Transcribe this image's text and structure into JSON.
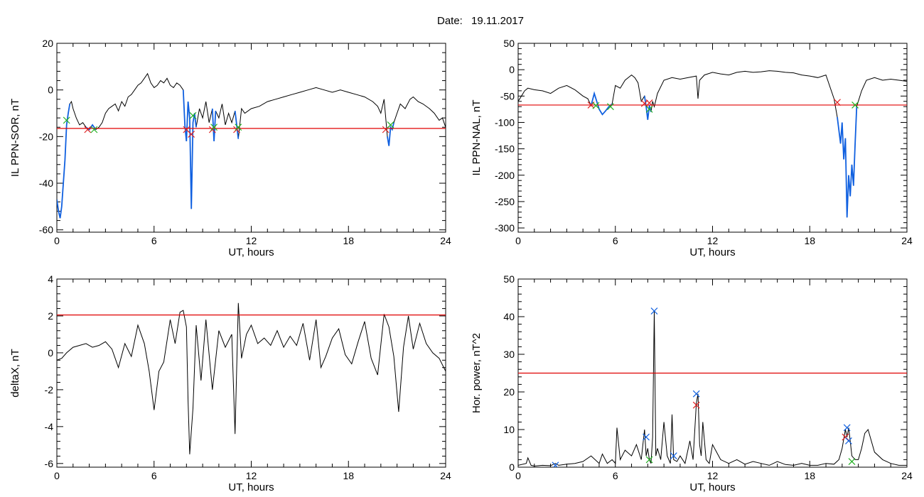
{
  "header": {
    "date_label": "Date:",
    "date_value": "19.11.2017"
  },
  "colors": {
    "trace": "#000000",
    "threshold": "#e00000",
    "highlight": "#1060e0",
    "marker_red": "#e02020",
    "marker_green": "#20b020",
    "marker_blue": "#1060e0"
  },
  "chart_data": [
    {
      "id": "sor",
      "type": "line",
      "title": "",
      "xlabel": "UT, hours",
      "ylabel": "IL PPN-SOR, nT",
      "xlim": [
        0,
        24
      ],
      "ylim": [
        -61,
        20
      ],
      "xticks": [
        0,
        6,
        12,
        18,
        24
      ],
      "yticks": [
        20,
        0,
        -20,
        -40,
        -60
      ],
      "threshold": -16.5,
      "series": [
        {
          "x": [
            0,
            0.1,
            0.2,
            0.3,
            0.4,
            0.5,
            0.6,
            0.7,
            0.8,
            0.9,
            1.0,
            1.2,
            1.4,
            1.6,
            1.8,
            2.0,
            2.2,
            2.4,
            2.6,
            2.8,
            3.0,
            3.2,
            3.4,
            3.6,
            3.8,
            4.0,
            4.2,
            4.4,
            4.6,
            4.8,
            5.0,
            5.2,
            5.4,
            5.6,
            5.8,
            6.0,
            6.2,
            6.4,
            6.6,
            6.8,
            7.0,
            7.2,
            7.4,
            7.6,
            7.8,
            7.9,
            8.0,
            8.1,
            8.2,
            8.3,
            8.4,
            8.5,
            8.6,
            8.8,
            9.0,
            9.2,
            9.4,
            9.6,
            9.7,
            9.8,
            10.0,
            10.2,
            10.4,
            10.6,
            10.8,
            11.0,
            11.2,
            11.4,
            11.6,
            12.0,
            12.5,
            13.0,
            13.5,
            14.0,
            14.5,
            15.0,
            15.5,
            16.0,
            16.5,
            17.0,
            17.5,
            18.0,
            18.5,
            19.0,
            19.5,
            19.8,
            20.0,
            20.2,
            20.4,
            20.5,
            20.6,
            20.7,
            20.8,
            21.0,
            21.2,
            21.5,
            21.8,
            22.0,
            22.3,
            22.6,
            23.0,
            23.3,
            23.6,
            23.8,
            24.0
          ],
          "y": [
            -47,
            -52,
            -55,
            -50,
            -40,
            -30,
            -15,
            -10,
            -6,
            -5,
            -8,
            -12,
            -15,
            -14,
            -16,
            -17,
            -15,
            -17,
            -16,
            -14,
            -10,
            -8,
            -7,
            -6,
            -9,
            -5,
            -7,
            -3,
            -2,
            0,
            2,
            3,
            5,
            7,
            3,
            1,
            2,
            4,
            3,
            5,
            2,
            1,
            3,
            2,
            0,
            -15,
            -22,
            -5,
            -12,
            -51,
            -14,
            -10,
            -16,
            -8,
            -12,
            -5,
            -14,
            -8,
            -22,
            -9,
            -12,
            -6,
            -15,
            -10,
            -14,
            -9,
            -21,
            -8,
            -10,
            -8,
            -7,
            -5,
            -4,
            -3,
            -2,
            -1,
            0,
            1,
            0,
            -1,
            0,
            -1,
            -2,
            -3,
            -5,
            -7,
            -10,
            -4,
            -20,
            -24,
            -16,
            -17,
            -14,
            -10,
            -6,
            -8,
            -4,
            -3,
            -5,
            -6,
            -8,
            -10,
            -13,
            -12,
            -16
          ]
        }
      ],
      "highlights": [
        {
          "x0": 0,
          "x1": 0.8
        },
        {
          "x0": 1.8,
          "x1": 2.4
        },
        {
          "x0": 7.8,
          "x1": 8.6
        },
        {
          "x0": 9.5,
          "x1": 9.8
        },
        {
          "x0": 11.0,
          "x1": 11.3
        },
        {
          "x0": 20.3,
          "x1": 20.8
        }
      ],
      "markers": [
        {
          "x": 0.6,
          "y": -13,
          "color": "marker_green"
        },
        {
          "x": 1.9,
          "y": -17,
          "color": "marker_red"
        },
        {
          "x": 2.3,
          "y": -17,
          "color": "marker_green"
        },
        {
          "x": 8.0,
          "y": -17,
          "color": "marker_red"
        },
        {
          "x": 8.3,
          "y": -19,
          "color": "marker_red"
        },
        {
          "x": 8.4,
          "y": -11,
          "color": "marker_green"
        },
        {
          "x": 9.6,
          "y": -17,
          "color": "marker_red"
        },
        {
          "x": 9.7,
          "y": -16,
          "color": "marker_green"
        },
        {
          "x": 11.1,
          "y": -17,
          "color": "marker_red"
        },
        {
          "x": 11.2,
          "y": -16,
          "color": "marker_green"
        },
        {
          "x": 20.3,
          "y": -17,
          "color": "marker_red"
        },
        {
          "x": 20.6,
          "y": -15,
          "color": "marker_green"
        }
      ]
    },
    {
      "id": "nal",
      "type": "line",
      "title": "",
      "xlabel": "UT, hours",
      "ylabel": "IL PPN-NAL, nT",
      "xlim": [
        0,
        24
      ],
      "ylim": [
        -308,
        50
      ],
      "xticks": [
        0,
        6,
        12,
        18,
        24
      ],
      "yticks": [
        50,
        0,
        -50,
        -100,
        -150,
        -200,
        -250,
        -300
      ],
      "threshold": -67,
      "series": [
        {
          "x": [
            0,
            0.2,
            0.4,
            0.6,
            1.0,
            1.5,
            2.0,
            2.5,
            3.0,
            3.5,
            4.0,
            4.3,
            4.5,
            4.7,
            5.0,
            5.2,
            5.4,
            5.6,
            5.8,
            6.0,
            6.3,
            6.6,
            7.0,
            7.2,
            7.4,
            7.6,
            7.8,
            7.9,
            8.0,
            8.1,
            8.2,
            8.3,
            8.4,
            8.6,
            9.0,
            9.5,
            10.0,
            10.5,
            11.0,
            11.1,
            11.2,
            11.5,
            12.0,
            12.5,
            13.0,
            13.5,
            14.0,
            14.5,
            15.0,
            15.5,
            16.0,
            16.5,
            17.0,
            17.5,
            18.0,
            18.5,
            19.0,
            19.5,
            19.7,
            19.9,
            20.0,
            20.1,
            20.2,
            20.3,
            20.4,
            20.5,
            20.6,
            20.7,
            20.8,
            20.9,
            21.0,
            21.2,
            21.5,
            22.0,
            22.5,
            23.0,
            23.5,
            24.0
          ],
          "y": [
            -60,
            -50,
            -40,
            -35,
            -38,
            -40,
            -45,
            -35,
            -30,
            -38,
            -50,
            -55,
            -68,
            -45,
            -75,
            -85,
            -78,
            -70,
            -65,
            -30,
            -35,
            -20,
            -10,
            -15,
            -25,
            -60,
            -50,
            -70,
            -95,
            -68,
            -80,
            -60,
            -70,
            -45,
            -20,
            -15,
            -18,
            -15,
            -12,
            -55,
            -20,
            -10,
            -5,
            -8,
            -10,
            -5,
            -3,
            -5,
            -4,
            -2,
            -3,
            -5,
            -6,
            -10,
            -12,
            -15,
            -10,
            -55,
            -90,
            -140,
            -100,
            -170,
            -130,
            -280,
            -200,
            -240,
            -180,
            -220,
            -140,
            -70,
            -60,
            -40,
            -20,
            -15,
            -20,
            -18,
            -20,
            -22
          ]
        }
      ],
      "highlights": [
        {
          "x0": 4.4,
          "x1": 5.8
        },
        {
          "x0": 7.7,
          "x1": 8.2
        },
        {
          "x0": 19.7,
          "x1": 20.9
        }
      ],
      "markers": [
        {
          "x": 4.5,
          "y": -67,
          "color": "marker_red"
        },
        {
          "x": 4.8,
          "y": -68,
          "color": "marker_green"
        },
        {
          "x": 5.7,
          "y": -70,
          "color": "marker_green"
        },
        {
          "x": 7.8,
          "y": -64,
          "color": "marker_red"
        },
        {
          "x": 8.1,
          "y": -63,
          "color": "marker_red"
        },
        {
          "x": 8.1,
          "y": -75,
          "color": "marker_green"
        },
        {
          "x": 19.7,
          "y": -62,
          "color": "marker_red"
        },
        {
          "x": 20.8,
          "y": -67,
          "color": "marker_green"
        }
      ]
    },
    {
      "id": "deltax",
      "type": "line",
      "title": "",
      "xlabel": "UT, hours",
      "ylabel": "deltaX, nT",
      "xlim": [
        0,
        24
      ],
      "ylim": [
        -6.2,
        4
      ],
      "xticks": [
        0,
        6,
        12,
        18,
        24
      ],
      "yticks": [
        4,
        2,
        0,
        -2,
        -4,
        -6
      ],
      "threshold": 2.05,
      "series": [
        {
          "x": [
            0,
            0.3,
            0.6,
            1.0,
            1.4,
            1.8,
            2.2,
            2.6,
            3.0,
            3.4,
            3.8,
            4.2,
            4.6,
            5.0,
            5.4,
            5.7,
            6.0,
            6.3,
            6.6,
            7.0,
            7.3,
            7.6,
            7.8,
            8.0,
            8.1,
            8.2,
            8.4,
            8.6,
            8.9,
            9.2,
            9.6,
            10.0,
            10.4,
            10.8,
            11.0,
            11.2,
            11.4,
            11.7,
            12.0,
            12.4,
            12.8,
            13.2,
            13.6,
            14.0,
            14.4,
            14.8,
            15.2,
            15.6,
            16.0,
            16.3,
            16.6,
            17.0,
            17.4,
            17.8,
            18.2,
            18.6,
            19.0,
            19.4,
            19.8,
            20.2,
            20.5,
            20.8,
            21.1,
            21.4,
            21.7,
            22.0,
            22.4,
            22.8,
            23.2,
            23.6,
            24.0
          ],
          "y": [
            -0.4,
            -0.3,
            0.0,
            0.3,
            0.4,
            0.5,
            0.3,
            0.4,
            0.6,
            0.2,
            -0.8,
            0.5,
            -0.2,
            1.5,
            0.5,
            -1.0,
            -3.1,
            -1.0,
            -0.5,
            1.8,
            0.5,
            2.2,
            2.3,
            1.4,
            -2.6,
            -5.5,
            -3.0,
            1.5,
            -1.5,
            1.8,
            -2.0,
            1.2,
            0.3,
            1.0,
            -4.4,
            2.7,
            -0.3,
            1.0,
            1.5,
            0.5,
            0.8,
            0.4,
            1.2,
            0.3,
            0.9,
            0.4,
            1.6,
            -0.4,
            1.8,
            -0.8,
            -0.2,
            0.8,
            1.3,
            -0.1,
            -0.6,
            0.6,
            1.7,
            -0.3,
            -1.2,
            2.1,
            1.4,
            -0.2,
            -3.2,
            0.3,
            2.0,
            0.2,
            1.6,
            0.5,
            0.0,
            -0.3,
            -1.0
          ]
        }
      ],
      "highlights": [],
      "markers": []
    },
    {
      "id": "power",
      "type": "line",
      "title": "",
      "xlabel": "UT, hours",
      "ylabel": "Hor. power, nT^2",
      "xlim": [
        0,
        24
      ],
      "ylim": [
        0,
        50
      ],
      "xticks": [
        0,
        6,
        12,
        18,
        24
      ],
      "yticks": [
        0,
        10,
        20,
        30,
        40,
        50
      ],
      "threshold": 25,
      "series": [
        {
          "x": [
            0,
            0.5,
            0.6,
            0.8,
            1.0,
            1.5,
            2.0,
            2.3,
            2.5,
            3.0,
            3.5,
            4.0,
            4.5,
            5.0,
            5.2,
            5.5,
            5.8,
            6.0,
            6.1,
            6.3,
            6.6,
            7.0,
            7.3,
            7.6,
            7.8,
            7.9,
            8.0,
            8.1,
            8.2,
            8.3,
            8.4,
            8.5,
            8.6,
            8.8,
            9.0,
            9.2,
            9.4,
            9.5,
            9.6,
            9.8,
            10.0,
            10.3,
            10.6,
            10.8,
            11.0,
            11.1,
            11.2,
            11.3,
            11.4,
            11.6,
            11.8,
            12.0,
            12.5,
            13.0,
            13.5,
            14.0,
            14.5,
            15.0,
            15.5,
            16.0,
            16.5,
            17.0,
            17.5,
            18.0,
            18.5,
            19.0,
            19.5,
            19.8,
            20.0,
            20.2,
            20.3,
            20.4,
            20.5,
            20.6,
            20.8,
            21.0,
            21.2,
            21.4,
            21.6,
            22.0,
            22.5,
            23.0,
            23.5,
            24.0
          ],
          "y": [
            0.5,
            1.0,
            2.5,
            0.5,
            0.3,
            0.5,
            0.4,
            1.0,
            0.5,
            0.8,
            1.0,
            1.5,
            3.0,
            1.0,
            3.5,
            1.0,
            2.0,
            1.0,
            10.5,
            2.0,
            4.5,
            3.0,
            6.0,
            2.0,
            10.0,
            3.0,
            5.0,
            2.0,
            1.0,
            8.0,
            41.5,
            3.0,
            5.0,
            2.0,
            12.0,
            3.0,
            1.0,
            14.0,
            2.0,
            1.5,
            3.0,
            1.0,
            7.0,
            2.0,
            17.0,
            19.5,
            6.0,
            3.0,
            12.0,
            2.0,
            1.0,
            6.0,
            2.0,
            1.0,
            2.0,
            0.8,
            1.5,
            1.0,
            0.5,
            1.5,
            0.7,
            0.5,
            1.0,
            0.5,
            0.5,
            1.0,
            0.8,
            2.0,
            5.0,
            10.0,
            8.0,
            10.5,
            7.0,
            3.0,
            2.0,
            2.0,
            5.0,
            9.0,
            10.0,
            4.0,
            2.0,
            1.0,
            0.5,
            0.5
          ]
        }
      ],
      "highlights": [],
      "markers": [
        {
          "x": 2.3,
          "y": 0.5,
          "color": "marker_blue"
        },
        {
          "x": 7.9,
          "y": 8.0,
          "color": "marker_blue"
        },
        {
          "x": 8.1,
          "y": 2.0,
          "color": "marker_green"
        },
        {
          "x": 8.4,
          "y": 41.5,
          "color": "marker_blue"
        },
        {
          "x": 9.6,
          "y": 3.0,
          "color": "marker_blue"
        },
        {
          "x": 11.0,
          "y": 19.5,
          "color": "marker_blue"
        },
        {
          "x": 11.0,
          "y": 16.5,
          "color": "marker_red"
        },
        {
          "x": 20.3,
          "y": 10.5,
          "color": "marker_blue"
        },
        {
          "x": 20.2,
          "y": 8.0,
          "color": "marker_red"
        },
        {
          "x": 20.4,
          "y": 7.0,
          "color": "marker_blue"
        },
        {
          "x": 20.6,
          "y": 1.5,
          "color": "marker_green"
        }
      ]
    }
  ]
}
